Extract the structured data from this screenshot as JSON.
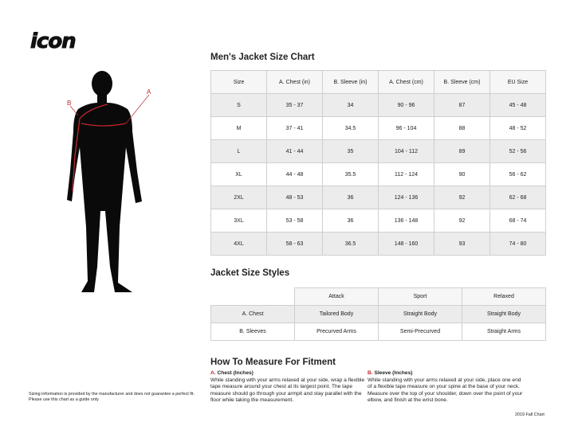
{
  "brand": {
    "logo_text": "icon"
  },
  "figure": {
    "label_a": "A",
    "label_b": "B",
    "accent": "#c0272d"
  },
  "size_chart": {
    "title": "Men's Jacket Size Chart",
    "headers": [
      "Size",
      "A. Chest (in)",
      "B. Sleeve (in)",
      "A. Chest (cm)",
      "B. Sleeve (cm)",
      "EU Size"
    ],
    "rows": [
      [
        "S",
        "35 - 37",
        "34",
        "90 - 96",
        "87",
        "45 - 48"
      ],
      [
        "M",
        "37 - 41",
        "34.5",
        "96 - 104",
        "88",
        "48 - 52"
      ],
      [
        "L",
        "41 - 44",
        "35",
        "104 - 112",
        "89",
        "52 - 56"
      ],
      [
        "XL",
        "44 - 48",
        "35.5",
        "112 - 124",
        "90",
        "56 - 62"
      ],
      [
        "2XL",
        "48 - 53",
        "36",
        "124 - 136",
        "92",
        "62 - 68"
      ],
      [
        "3XL",
        "53 - 58",
        "36",
        "136 - 148",
        "92",
        "68 - 74"
      ],
      [
        "4XL",
        "58 - 63",
        "36.5",
        "148 - 160",
        "93",
        "74 - 80"
      ]
    ]
  },
  "styles": {
    "title": "Jacket Size Styles",
    "headers": [
      "",
      "Attack",
      "Sport",
      "Relaxed"
    ],
    "rows": [
      [
        "A. Chest",
        "Tailored Body",
        "Straight Body",
        "Straight Body"
      ],
      [
        "B. Sleeves",
        "Precurved Arms",
        "Semi-Precurved",
        "Straight Arms"
      ]
    ]
  },
  "measure": {
    "title": "How To Measure For Fitment",
    "chest": {
      "letter": "A.",
      "label": "Chest (Inches)",
      "text": "While standing with your arms relaxed at your side, wrap a flexible tape measure around your chest at its largest point. The tape measure should go through your armpit and stay parallel with the floor while taking the measurement."
    },
    "sleeve": {
      "letter": "B.",
      "label": "Sleeve (Inches)",
      "text": "While standing with your arms relaxed at your side, place one end of a flexible tape measure on your spine at the base of your neck. Measure over the top of your shoulder, down over the point of your elbow, and finish at the wrist bone."
    }
  },
  "disclaimer": {
    "line1": "Sizing information is provided by the manufacturer and does not guarantee a perfect fit.",
    "line2": "Please use this chart as a guide only"
  },
  "footer": "2019 Fall Chart"
}
